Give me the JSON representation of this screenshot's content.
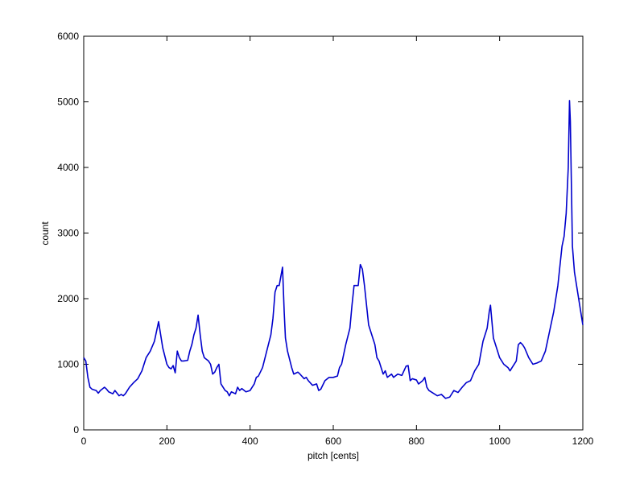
{
  "chart_data": {
    "type": "line",
    "x_label": "pitch [cents]",
    "y_label": "count",
    "xlim": [
      0,
      1200
    ],
    "xticks": [
      0,
      200,
      400,
      600,
      800,
      1000,
      1200
    ],
    "ylim": [
      0,
      6000
    ],
    "yticks": [
      0,
      1000,
      2000,
      3000,
      4000,
      5000,
      6000
    ],
    "grid": false,
    "x": [
      0,
      5,
      10,
      15,
      20,
      30,
      35,
      40,
      50,
      55,
      60,
      70,
      75,
      80,
      85,
      90,
      95,
      100,
      110,
      120,
      130,
      140,
      150,
      160,
      170,
      180,
      185,
      190,
      200,
      205,
      210,
      215,
      220,
      225,
      230,
      235,
      240,
      250,
      255,
      260,
      265,
      270,
      275,
      280,
      285,
      290,
      300,
      305,
      310,
      315,
      320,
      325,
      330,
      340,
      345,
      350,
      355,
      365,
      370,
      375,
      380,
      390,
      400,
      410,
      415,
      420,
      430,
      440,
      450,
      455,
      460,
      465,
      470,
      478,
      482,
      485,
      490,
      500,
      505,
      515,
      520,
      530,
      535,
      540,
      550,
      560,
      565,
      570,
      580,
      590,
      600,
      610,
      615,
      620,
      630,
      640,
      645,
      650,
      655,
      660,
      665,
      670,
      675,
      680,
      685,
      690,
      700,
      705,
      710,
      715,
      720,
      725,
      730,
      740,
      745,
      755,
      765,
      775,
      780,
      785,
      790,
      800,
      805,
      815,
      820,
      825,
      830,
      840,
      850,
      860,
      870,
      880,
      890,
      900,
      910,
      920,
      930,
      940,
      950,
      960,
      970,
      975,
      978,
      985,
      990,
      1000,
      1010,
      1020,
      1025,
      1030,
      1040,
      1045,
      1050,
      1055,
      1060,
      1070,
      1080,
      1090,
      1100,
      1110,
      1120,
      1130,
      1140,
      1150,
      1155,
      1160,
      1165,
      1168,
      1170,
      1175,
      1180,
      1190,
      1200
    ],
    "series": [
      {
        "name": "count",
        "color": "#0000cc",
        "values": [
          1100,
          1050,
          800,
          650,
          620,
          600,
          560,
          600,
          650,
          620,
          580,
          550,
          600,
          560,
          520,
          540,
          520,
          550,
          650,
          720,
          780,
          900,
          1100,
          1200,
          1350,
          1650,
          1450,
          1250,
          1000,
          950,
          930,
          980,
          870,
          1200,
          1100,
          1050,
          1050,
          1060,
          1200,
          1300,
          1450,
          1550,
          1750,
          1450,
          1200,
          1100,
          1050,
          1000,
          850,
          880,
          950,
          1000,
          700,
          600,
          580,
          520,
          580,
          550,
          650,
          600,
          630,
          580,
          600,
          700,
          800,
          820,
          950,
          1200,
          1450,
          1700,
          2100,
          2200,
          2200,
          2480,
          1800,
          1400,
          1200,
          950,
          850,
          880,
          850,
          780,
          800,
          750,
          680,
          700,
          600,
          620,
          750,
          800,
          800,
          820,
          950,
          1000,
          1300,
          1550,
          1900,
          2200,
          2200,
          2200,
          2520,
          2450,
          2200,
          1900,
          1600,
          1500,
          1300,
          1100,
          1050,
          950,
          850,
          900,
          800,
          850,
          800,
          850,
          830,
          970,
          980,
          750,
          780,
          760,
          700,
          750,
          800,
          650,
          600,
          560,
          520,
          540,
          480,
          500,
          600,
          570,
          650,
          720,
          750,
          900,
          1000,
          1350,
          1550,
          1800,
          1900,
          1400,
          1300,
          1100,
          1000,
          950,
          900,
          950,
          1050,
          1300,
          1330,
          1300,
          1250,
          1100,
          1000,
          1020,
          1050,
          1200,
          1500,
          1800,
          2200,
          2800,
          2950,
          3300,
          4000,
          5020,
          4700,
          2800,
          2400,
          2000,
          1600
        ]
      }
    ]
  }
}
